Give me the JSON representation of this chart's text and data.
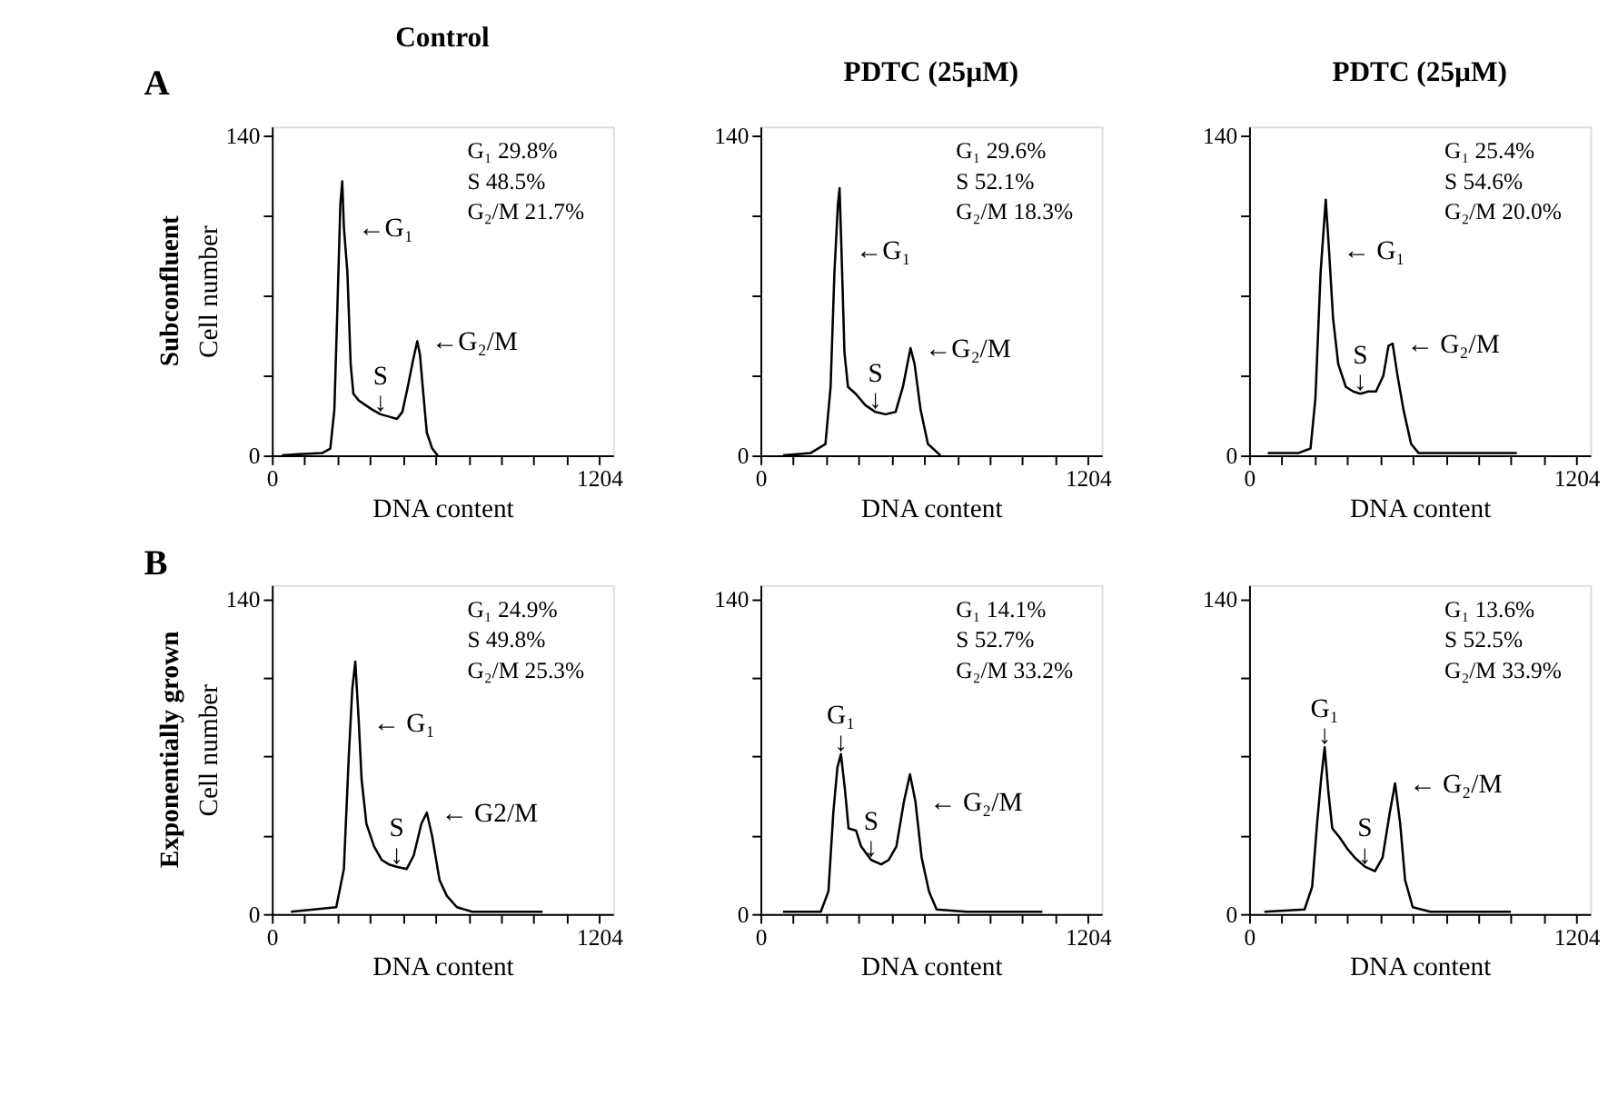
{
  "chart_data": [
    {
      "type": "line",
      "title": "Control",
      "xlabel": "DNA content",
      "ylabel": "Cell number",
      "xlim": [
        0,
        1255
      ],
      "ylim": [
        0,
        144
      ],
      "xticks": [
        0,
        {
          "value": 120.4,
          "label": null
        },
        {
          "value": 240.8,
          "label": null
        },
        {
          "value": 361.2,
          "label": null
        },
        {
          "value": 481.6,
          "label": null
        },
        {
          "value": 602,
          "label": null
        },
        {
          "value": 722.4,
          "label": null
        },
        {
          "value": 842.8,
          "label": null
        },
        {
          "value": 963.2,
          "label": null
        },
        {
          "value": 1083.6,
          "label": null
        },
        1204
      ],
      "yticks": [
        0,
        {
          "value": 35,
          "label": null
        },
        {
          "value": 70,
          "label": null
        },
        {
          "value": 105,
          "label": null
        },
        140
      ],
      "grid": false,
      "legend": false,
      "marker": "none",
      "line_style": "solid",
      "series": [
        {
          "color": "#000000",
          "x": [
            37,
            98,
            185,
            215,
            230,
            240,
            252,
            259,
            265,
            278,
            290,
            300,
            320,
            345,
            370,
            400,
            430,
            460,
            480,
            500,
            520,
            535,
            545,
            555,
            570,
            590,
            610
          ],
          "values": [
            0,
            0.5,
            1,
            3,
            20,
            60,
            110,
            120,
            100,
            80,
            40,
            27,
            24,
            22,
            20,
            18,
            17,
            16,
            19,
            30,
            42,
            50,
            44,
            30,
            10,
            3,
            0
          ]
        }
      ],
      "annotations": [
        "G₁      29.8%",
        "S          48.5%",
        "G₂/M 21.7%",
        "Subconfluent",
        "A",
        {
          "text": "←G₁",
          "x": 265,
          "y": 100
        },
        {
          "text": "S\n↓",
          "x": 400,
          "y": 18
        },
        {
          "text": "←G₂/M",
          "x": 535,
          "y": 50
        }
      ]
    },
    {
      "type": "line",
      "title": "PDTC (25µM)",
      "xlabel": "DNA content",
      "xlim": [
        0,
        1255
      ],
      "ylim": [
        0,
        144
      ],
      "xticks": [
        0,
        {
          "value": 120.4,
          "label": null
        },
        {
          "value": 240.8,
          "label": null
        },
        {
          "value": 361.2,
          "label": null
        },
        {
          "value": 481.6,
          "label": null
        },
        {
          "value": 602,
          "label": null
        },
        {
          "value": 722.4,
          "label": null
        },
        {
          "value": 842.8,
          "label": null
        },
        {
          "value": 963.2,
          "label": null
        },
        {
          "value": 1083.6,
          "label": null
        },
        1204
      ],
      "yticks": [
        0,
        {
          "value": 35,
          "label": null
        },
        {
          "value": 70,
          "label": null
        },
        {
          "value": 105,
          "label": null
        },
        140
      ],
      "grid": false,
      "legend": false,
      "marker": "none",
      "line_style": "solid",
      "series": [
        {
          "color": "#000000",
          "x": [
            83,
            184,
            239,
            258,
            272,
            285,
            291,
            298,
            309,
            322,
            350,
            386,
            423,
            460,
            497,
            524,
            552,
            567,
            589,
            616,
            662
          ],
          "values": [
            0,
            1,
            5,
            30,
            80,
            110,
            117,
            90,
            45,
            30,
            27,
            22,
            19,
            18,
            19,
            30,
            47,
            40,
            20,
            5,
            0
          ]
        }
      ],
      "annotations": [
        "G₁      29.6%",
        "S          52.1%",
        "G₂/M 18.3%",
        {
          "text": "←G₁",
          "x": 298,
          "y": 90
        },
        {
          "text": "S\n↓",
          "x": 423,
          "y": 19
        },
        {
          "text": "←G₂/M",
          "x": 552,
          "y": 47
        }
      ]
    },
    {
      "type": "line",
      "title": "PDTC (25µM)",
      "xlabel": "DNA content",
      "xlim": [
        0,
        1255
      ],
      "ylim": [
        0,
        144
      ],
      "xticks": [
        0,
        {
          "value": 120.4,
          "label": null
        },
        {
          "value": 240.8,
          "label": null
        },
        {
          "value": 361.2,
          "label": null
        },
        {
          "value": 481.6,
          "label": null
        },
        {
          "value": 602,
          "label": null
        },
        {
          "value": 722.4,
          "label": null
        },
        {
          "value": 842.8,
          "label": null
        },
        {
          "value": 963.2,
          "label": null
        },
        {
          "value": 1083.6,
          "label": null
        },
        1204
      ],
      "yticks": [
        0,
        {
          "value": 35,
          "label": null
        },
        {
          "value": 70,
          "label": null
        },
        {
          "value": 105,
          "label": null
        },
        140
      ],
      "grid": false,
      "legend": false,
      "marker": "none",
      "line_style": "solid",
      "series": [
        {
          "color": "#000000",
          "x": [
            69,
            180,
            226,
            244,
            263,
            282,
            294,
            309,
            328,
            356,
            383,
            409,
            439,
            467,
            494,
            513,
            528,
            546,
            568,
            596,
            624,
            735,
            985
          ],
          "values": [
            1,
            1,
            3,
            25,
            80,
            112,
            90,
            60,
            40,
            30,
            28,
            27,
            28,
            28,
            35,
            48,
            49,
            35,
            20,
            5,
            1,
            1,
            1
          ]
        }
      ],
      "annotations": [
        "G₁      25.4%",
        "S          54.6%",
        "G₂/M 20.0%",
        {
          "text": "← G₁",
          "x": 294,
          "y": 90
        },
        {
          "text": "S\n↓",
          "x": 409,
          "y": 27
        },
        {
          "text": "← G₂/M",
          "x": 528,
          "y": 49
        }
      ]
    },
    {
      "type": "line",
      "xlabel": "DNA content",
      "ylabel": "Cell number",
      "xlim": [
        0,
        1255
      ],
      "ylim": [
        0,
        146
      ],
      "xticks": [
        0,
        {
          "value": 120.4,
          "label": null
        },
        {
          "value": 240.8,
          "label": null
        },
        {
          "value": 361.2,
          "label": null
        },
        {
          "value": 481.6,
          "label": null
        },
        {
          "value": 602,
          "label": null
        },
        {
          "value": 722.4,
          "label": null
        },
        {
          "value": 842.8,
          "label": null
        },
        {
          "value": 963.2,
          "label": null
        },
        {
          "value": 1083.6,
          "label": null
        },
        1204
      ],
      "yticks": [
        0,
        {
          "value": 35,
          "label": null
        },
        {
          "value": 70,
          "label": null
        },
        {
          "value": 105,
          "label": null
        },
        140
      ],
      "grid": false,
      "legend": false,
      "marker": "none",
      "line_style": "solid",
      "series": [
        {
          "color": "#000000",
          "x": [
            70,
            237,
            265,
            283,
            296,
            307,
            320,
            330,
            348,
            376,
            404,
            431,
            459,
            496,
            522,
            550,
            570,
            589,
            617,
            644,
            681,
            737,
            996
          ],
          "values": [
            1,
            3,
            20,
            70,
            100,
            112,
            85,
            60,
            40,
            30,
            24,
            22,
            21,
            20,
            26,
            40,
            45,
            35,
            15,
            8,
            3,
            1,
            1
          ]
        }
      ],
      "annotations": [
        "G₁      24.9%",
        "S          49.8%",
        "G₂/M 25.3%",
        "Exponentially  grown",
        "B",
        {
          "text": "← G₁",
          "x": 320,
          "y": 85
        },
        {
          "text": "S\n↓",
          "x": 459,
          "y": 21
        },
        {
          "text": "← G2/M",
          "x": 570,
          "y": 45
        }
      ]
    },
    {
      "type": "line",
      "xlabel": "DNA content",
      "xlim": [
        0,
        1255
      ],
      "ylim": [
        0,
        146
      ],
      "xticks": [
        0,
        {
          "value": 120.4,
          "label": null
        },
        {
          "value": 240.8,
          "label": null
        },
        {
          "value": 361.2,
          "label": null
        },
        {
          "value": 481.6,
          "label": null
        },
        {
          "value": 602,
          "label": null
        },
        {
          "value": 722.4,
          "label": null
        },
        {
          "value": 842.8,
          "label": null
        },
        {
          "value": 963.2,
          "label": null
        },
        {
          "value": 1083.6,
          "label": null
        },
        1204
      ],
      "yticks": [
        0,
        {
          "value": 35,
          "label": null
        },
        {
          "value": 70,
          "label": null
        },
        {
          "value": 105,
          "label": null
        },
        140
      ],
      "grid": false,
      "legend": false,
      "marker": "none",
      "line_style": "solid",
      "series": [
        {
          "color": "#000000",
          "x": [
            83,
            222,
            250,
            268,
            283,
            296,
            311,
            324,
            352,
            370,
            407,
            444,
            472,
            500,
            528,
            550,
            570,
            593,
            620,
            648,
            759,
            1037
          ],
          "values": [
            1,
            1,
            10,
            45,
            65,
            71,
            55,
            38,
            37,
            30,
            24,
            22,
            24,
            30,
            50,
            62,
            50,
            25,
            10,
            2,
            1,
            1
          ]
        }
      ],
      "annotations": [
        "G₁      14.1%",
        "S          52.7%",
        "G₂/M 33.2%",
        {
          "text": "G₁\n↓",
          "x": 296,
          "y": 71
        },
        {
          "text": "S\n↓",
          "x": 407,
          "y": 24
        },
        {
          "text": "← G₂/M",
          "x": 570,
          "y": 50
        }
      ]
    },
    {
      "type": "line",
      "xlabel": "DNA content",
      "xlim": [
        0,
        1255
      ],
      "ylim": [
        0,
        146
      ],
      "xticks": [
        0,
        {
          "value": 120.4,
          "label": null
        },
        {
          "value": 240.8,
          "label": null
        },
        {
          "value": 361.2,
          "label": null
        },
        {
          "value": 481.6,
          "label": null
        },
        {
          "value": 602,
          "label": null
        },
        {
          "value": 722.4,
          "label": null
        },
        {
          "value": 842.8,
          "label": null
        },
        {
          "value": 963.2,
          "label": null
        },
        {
          "value": 1083.6,
          "label": null
        },
        1204
      ],
      "yticks": [
        0,
        {
          "value": 35,
          "label": null
        },
        {
          "value": 70,
          "label": null
        },
        {
          "value": 105,
          "label": null
        },
        140
      ],
      "grid": false,
      "legend": false,
      "marker": "none",
      "line_style": "solid",
      "series": [
        {
          "color": "#000000",
          "x": [
            56,
            204,
            232,
            250,
            265,
            278,
            291,
            306,
            333,
            361,
            389,
            426,
            463,
            491,
            519,
            537,
            556,
            574,
            602,
            667,
            963
          ],
          "values": [
            1,
            2,
            12,
            40,
            60,
            74,
            55,
            38,
            34,
            29,
            25,
            21,
            19,
            25,
            46,
            58,
            40,
            15,
            3,
            1,
            1
          ]
        }
      ],
      "annotations": [
        "G₁      13.6%",
        "S          52.5%",
        "G₂/M 33.9%",
        {
          "text": "G₁\n↓",
          "x": 278,
          "y": 74
        },
        {
          "text": "S\n↓",
          "x": 426,
          "y": 21
        },
        {
          "text": "← G₂/M",
          "x": 537,
          "y": 58
        }
      ]
    }
  ]
}
